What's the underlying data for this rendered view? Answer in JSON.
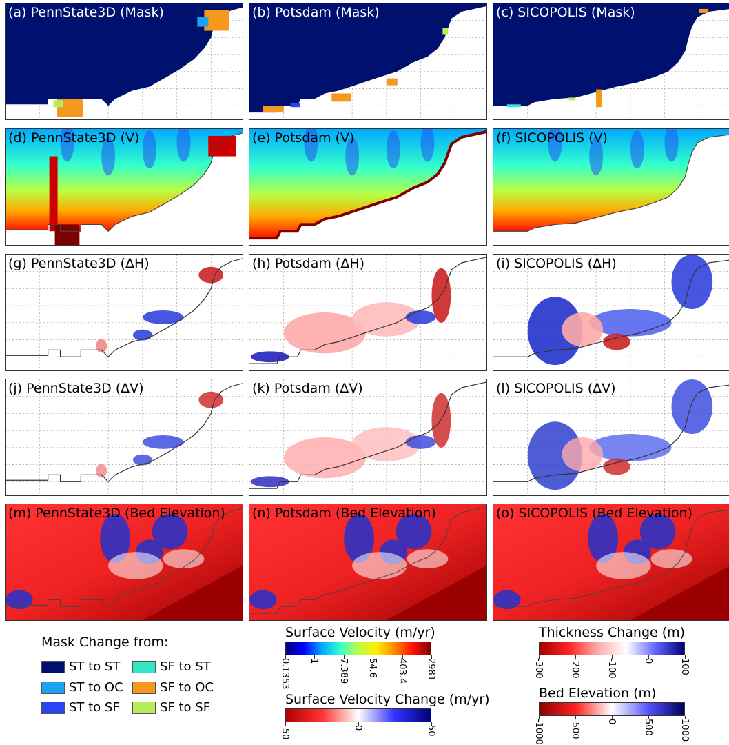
{
  "panels": [
    {
      "label": "(a) PennState3D (Mask)",
      "model": "PennState3D",
      "field": "Mask"
    },
    {
      "label": "(b) Potsdam (Mask)",
      "model": "Potsdam",
      "field": "Mask"
    },
    {
      "label": "(c) SICOPOLIS (Mask)",
      "model": "SICOPOLIS",
      "field": "Mask"
    },
    {
      "label": "(d) PennState3D (V)",
      "model": "PennState3D",
      "field": "V"
    },
    {
      "label": "(e) Potsdam (V)",
      "model": "Potsdam",
      "field": "V"
    },
    {
      "label": "(f) SICOPOLIS (V)",
      "model": "SICOPOLIS",
      "field": "V"
    },
    {
      "label": "(g) PennState3D (ΔH)",
      "model": "PennState3D",
      "field": "dH"
    },
    {
      "label": "(h) Potsdam (ΔH)",
      "model": "Potsdam",
      "field": "dH"
    },
    {
      "label": "(i) SICOPOLIS (ΔH)",
      "model": "SICOPOLIS",
      "field": "dH"
    },
    {
      "label": "(j) PennState3D (ΔV)",
      "model": "PennState3D",
      "field": "dV"
    },
    {
      "label": "(k) Potsdam (ΔV)",
      "model": "Potsdam",
      "field": "dV"
    },
    {
      "label": "(l) SICOPOLIS (ΔV)",
      "model": "SICOPOLIS",
      "field": "dV"
    },
    {
      "label": "(m) PennState3D (Bed Elevation)",
      "model": "PennState3D",
      "field": "Bed"
    },
    {
      "label": "(n) Potsdam (Bed Elevation)",
      "model": "Potsdam",
      "field": "Bed"
    },
    {
      "label": "(o) SICOPOLIS (Bed Elevation)",
      "model": "SICOPOLIS",
      "field": "Bed"
    }
  ],
  "mask_legend": {
    "title": "Mask Change from:",
    "items": [
      {
        "label": "ST to ST",
        "color": "#00106e"
      },
      {
        "label": "SF to ST",
        "color": "#33e6c8"
      },
      {
        "label": "ST to OC",
        "color": "#1aa3f0"
      },
      {
        "label": "SF to OC",
        "color": "#f4981e"
      },
      {
        "label": "ST to SF",
        "color": "#2944f0"
      },
      {
        "label": "SF to SF",
        "color": "#b5ee5a"
      }
    ]
  },
  "velocity_bar": {
    "title": "Surface Velocity (m/yr)",
    "ticks": [
      "0.1353",
      "1",
      "7.389",
      "54.6",
      "403.4",
      "2981"
    ],
    "colors": [
      "#00007f",
      "#0000ff",
      "#00aaff",
      "#33ffcc",
      "#b8ff44",
      "#ffee00",
      "#ff8800",
      "#ff1100",
      "#7f0000"
    ]
  },
  "velocity_change_bar": {
    "title": "Surface Velocity Change (m/yr)",
    "ticks": [
      "-50",
      "0",
      "50"
    ],
    "colors": [
      "#b30000",
      "#ff3333",
      "#ffffff",
      "#3333ff",
      "#00007a"
    ]
  },
  "thickness_bar": {
    "title": "Thickness Change (m)",
    "ticks": [
      "-300",
      "-200",
      "-100",
      "0",
      "100"
    ],
    "colors": [
      "#a30000",
      "#ff2222",
      "#ffaaaa",
      "#ffffff",
      "#6666ff",
      "#00007a"
    ]
  },
  "bed_bar": {
    "title": "Bed Elevation (m)",
    "ticks": [
      "-1000",
      "-500",
      "0",
      "500",
      "1000"
    ],
    "colors": [
      "#8b0000",
      "#ff2222",
      "#ffffff",
      "#5555ff",
      "#00005a"
    ]
  }
}
